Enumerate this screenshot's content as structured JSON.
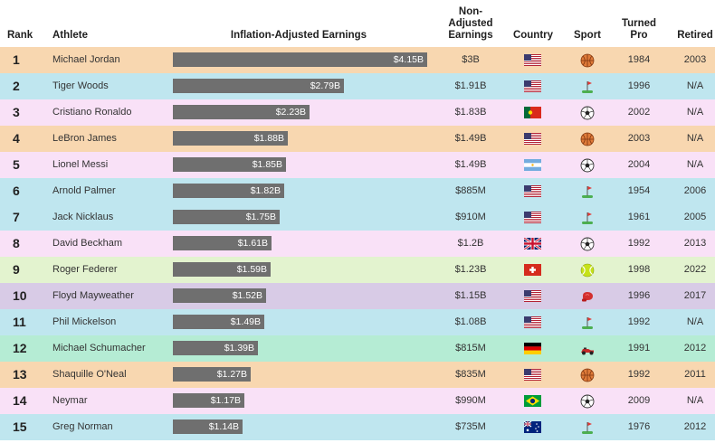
{
  "headers": {
    "rank": "Rank",
    "athlete": "Athlete",
    "inflation": "Inflation-Adjusted Earnings",
    "nonadjusted": "Non-\nAdjusted\nEarnings",
    "country": "Country",
    "sport": "Sport",
    "turned_pro": "Turned\nPro",
    "retired": "Retired"
  },
  "colors": {
    "basketball": "#f8d7b0",
    "golf": "#bfe6ef",
    "soccer": "#f9e1f7",
    "tennis": "#e3f3cf",
    "boxing": "#d8cbe6",
    "racing": "#b5ecd4",
    "bar": "#6f6f6f"
  },
  "chart_data": {
    "type": "bar",
    "title": "",
    "xlabel": "Inflation-Adjusted Earnings",
    "unit": "billion USD",
    "xlim": [
      0,
      4.15
    ],
    "categories": [
      "Michael Jordan",
      "Tiger Woods",
      "Cristiano Ronaldo",
      "LeBron James",
      "Lionel Messi",
      "Arnold Palmer",
      "Jack Nicklaus",
      "David Beckham",
      "Roger Federer",
      "Floyd Mayweather",
      "Phil Mickelson",
      "Michael Schumacher",
      "Shaquille O'Neal",
      "Neymar",
      "Greg Norman"
    ],
    "values": [
      4.15,
      2.79,
      2.23,
      1.88,
      1.85,
      1.82,
      1.75,
      1.61,
      1.59,
      1.52,
      1.49,
      1.39,
      1.27,
      1.17,
      1.14
    ]
  },
  "rows": [
    {
      "rank": "1",
      "athlete": "Michael Jordan",
      "earnings": 4.15,
      "earnings_label": "$4.15B",
      "nonadj": "$3B",
      "country": "United States",
      "flag": "us",
      "sport": "basketball",
      "sport_icon": "basketball-icon",
      "turned_pro": "1984",
      "retired": "2003"
    },
    {
      "rank": "2",
      "athlete": "Tiger Woods",
      "earnings": 2.79,
      "earnings_label": "$2.79B",
      "nonadj": "$1.91B",
      "country": "United States",
      "flag": "us",
      "sport": "golf",
      "sport_icon": "golf-icon",
      "turned_pro": "1996",
      "retired": "N/A"
    },
    {
      "rank": "3",
      "athlete": "Cristiano Ronaldo",
      "earnings": 2.23,
      "earnings_label": "$2.23B",
      "nonadj": "$1.83B",
      "country": "Portugal",
      "flag": "pt",
      "sport": "soccer",
      "sport_icon": "soccer-ball-icon",
      "turned_pro": "2002",
      "retired": "N/A"
    },
    {
      "rank": "4",
      "athlete": "LeBron James",
      "earnings": 1.88,
      "earnings_label": "$1.88B",
      "nonadj": "$1.49B",
      "country": "United States",
      "flag": "us",
      "sport": "basketball",
      "sport_icon": "basketball-icon",
      "turned_pro": "2003",
      "retired": "N/A"
    },
    {
      "rank": "5",
      "athlete": "Lionel Messi",
      "earnings": 1.85,
      "earnings_label": "$1.85B",
      "nonadj": "$1.49B",
      "country": "Argentina",
      "flag": "ar",
      "sport": "soccer",
      "sport_icon": "soccer-ball-icon",
      "turned_pro": "2004",
      "retired": "N/A"
    },
    {
      "rank": "6",
      "athlete": "Arnold Palmer",
      "earnings": 1.82,
      "earnings_label": "$1.82B",
      "nonadj": "$885M",
      "country": "United States",
      "flag": "us",
      "sport": "golf",
      "sport_icon": "golf-icon",
      "turned_pro": "1954",
      "retired": "2006"
    },
    {
      "rank": "7",
      "athlete": "Jack Nicklaus",
      "earnings": 1.75,
      "earnings_label": "$1.75B",
      "nonadj": "$910M",
      "country": "United States",
      "flag": "us",
      "sport": "golf",
      "sport_icon": "golf-icon",
      "turned_pro": "1961",
      "retired": "2005"
    },
    {
      "rank": "8",
      "athlete": "David Beckham",
      "earnings": 1.61,
      "earnings_label": "$1.61B",
      "nonadj": "$1.2B",
      "country": "United Kingdom",
      "flag": "gb",
      "sport": "soccer",
      "sport_icon": "soccer-ball-icon",
      "turned_pro": "1992",
      "retired": "2013"
    },
    {
      "rank": "9",
      "athlete": "Roger Federer",
      "earnings": 1.59,
      "earnings_label": "$1.59B",
      "nonadj": "$1.23B",
      "country": "Switzerland",
      "flag": "ch",
      "sport": "tennis",
      "sport_icon": "tennis-ball-icon",
      "turned_pro": "1998",
      "retired": "2022"
    },
    {
      "rank": "10",
      "athlete": "Floyd Mayweather",
      "earnings": 1.52,
      "earnings_label": "$1.52B",
      "nonadj": "$1.15B",
      "country": "United States",
      "flag": "us",
      "sport": "boxing",
      "sport_icon": "boxing-glove-icon",
      "turned_pro": "1996",
      "retired": "2017"
    },
    {
      "rank": "11",
      "athlete": "Phil Mickelson",
      "earnings": 1.49,
      "earnings_label": "$1.49B",
      "nonadj": "$1.08B",
      "country": "United States",
      "flag": "us",
      "sport": "golf",
      "sport_icon": "golf-icon",
      "turned_pro": "1992",
      "retired": "N/A"
    },
    {
      "rank": "12",
      "athlete": "Michael Schumacher",
      "earnings": 1.39,
      "earnings_label": "$1.39B",
      "nonadj": "$815M",
      "country": "Germany",
      "flag": "de",
      "sport": "racing",
      "sport_icon": "race-car-icon",
      "turned_pro": "1991",
      "retired": "2012"
    },
    {
      "rank": "13",
      "athlete": "Shaquille O'Neal",
      "earnings": 1.27,
      "earnings_label": "$1.27B",
      "nonadj": "$835M",
      "country": "United States",
      "flag": "us",
      "sport": "basketball",
      "sport_icon": "basketball-icon",
      "turned_pro": "1992",
      "retired": "2011"
    },
    {
      "rank": "14",
      "athlete": "Neymar",
      "earnings": 1.17,
      "earnings_label": "$1.17B",
      "nonadj": "$990M",
      "country": "Brazil",
      "flag": "br",
      "sport": "soccer",
      "sport_icon": "soccer-ball-icon",
      "turned_pro": "2009",
      "retired": "N/A"
    },
    {
      "rank": "15",
      "athlete": "Greg Norman",
      "earnings": 1.14,
      "earnings_label": "$1.14B",
      "nonadj": "$735M",
      "country": "Australia",
      "flag": "au",
      "sport": "golf",
      "sport_icon": "golf-icon",
      "turned_pro": "1976",
      "retired": "2012"
    }
  ]
}
